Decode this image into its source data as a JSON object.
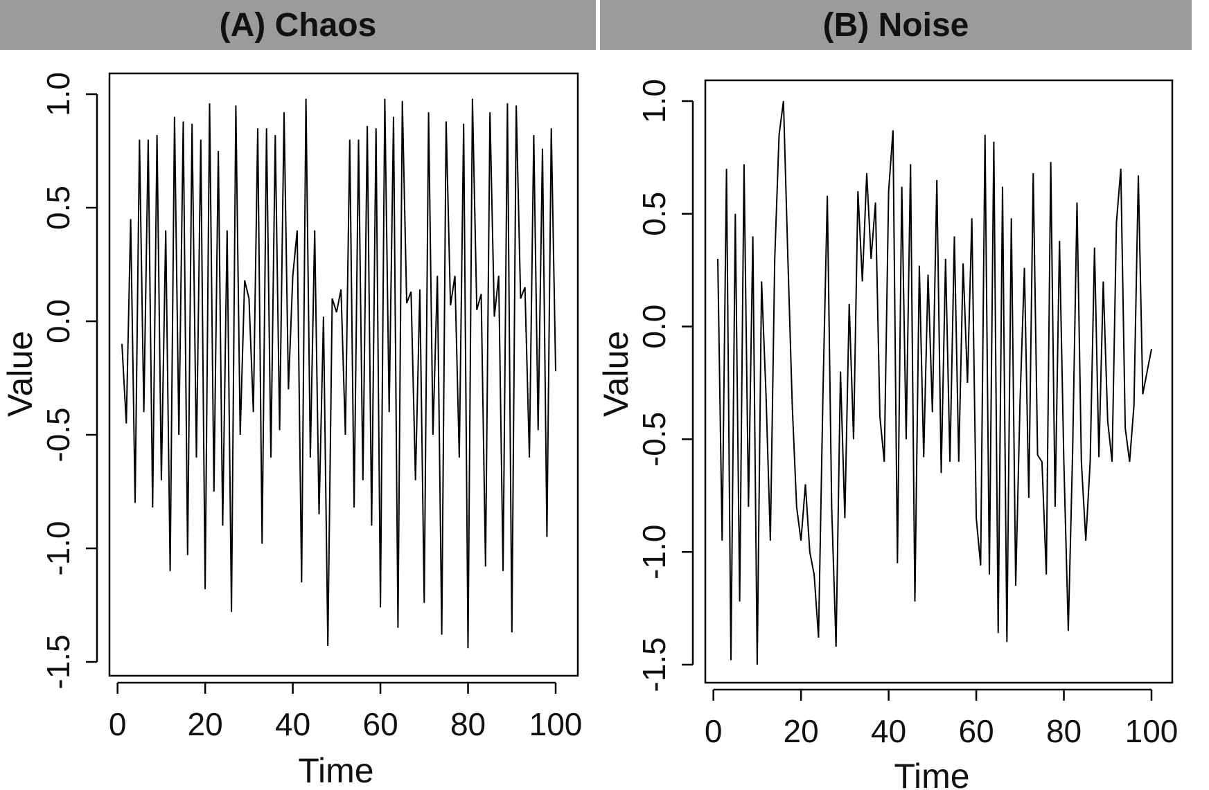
{
  "chart_data": [
    {
      "type": "line",
      "title": "(A) Chaos",
      "xlabel": "Time",
      "ylabel": "Value",
      "xlim": [
        1,
        100
      ],
      "ylim": [
        -1.5,
        1.0
      ],
      "x_ticks": [
        0,
        20,
        40,
        60,
        80,
        100
      ],
      "x_tick_labels": [
        "0",
        "20",
        "40",
        "60",
        "80",
        "100"
      ],
      "y_ticks": [
        -1.5,
        -1.0,
        -0.5,
        0.0,
        0.5,
        1.0
      ],
      "y_tick_labels": [
        "-1.5",
        "-1.0",
        "-0.5",
        "0.0",
        "0.5",
        "1.0"
      ],
      "grid": false,
      "series": [
        {
          "x": [
            1,
            2,
            3,
            4,
            5,
            6,
            7,
            8,
            9,
            10,
            11,
            12,
            13,
            14,
            15,
            16,
            17,
            18,
            19,
            20,
            21,
            22,
            23,
            24,
            25,
            26,
            27,
            28,
            29,
            30,
            31,
            32,
            33,
            34,
            35,
            36,
            37,
            38,
            39,
            40,
            41,
            42,
            43,
            44,
            45,
            46,
            47,
            48,
            49,
            50,
            51,
            52,
            53,
            54,
            55,
            56,
            57,
            58,
            59,
            60,
            61,
            62,
            63,
            64,
            65,
            66,
            67,
            68,
            69,
            70,
            71,
            72,
            73,
            74,
            75,
            76,
            77,
            78,
            79,
            80,
            81,
            82,
            83,
            84,
            85,
            86,
            87,
            88,
            89,
            90,
            91,
            92,
            93,
            94,
            95,
            96,
            97,
            98,
            99,
            100
          ],
          "y": [
            -0.1,
            -0.45,
            0.45,
            -0.8,
            0.8,
            -0.4,
            0.8,
            -0.82,
            0.82,
            -0.7,
            0.4,
            -1.1,
            0.9,
            -0.5,
            0.88,
            -1.03,
            0.87,
            -0.6,
            0.8,
            -1.18,
            0.96,
            -0.75,
            0.75,
            -0.9,
            0.4,
            -1.28,
            0.95,
            -0.5,
            0.18,
            0.1,
            -0.4,
            0.85,
            -0.98,
            0.85,
            -0.6,
            0.82,
            -0.48,
            0.92,
            -0.3,
            0.2,
            0.4,
            -1.15,
            0.98,
            -0.6,
            0.4,
            -0.85,
            0.02,
            -1.43,
            0.1,
            0.04,
            0.14,
            -0.5,
            0.8,
            -0.82,
            0.8,
            -0.7,
            0.86,
            -0.9,
            0.85,
            -1.26,
            0.98,
            -0.4,
            0.9,
            -1.35,
            0.97,
            0.08,
            0.13,
            -0.7,
            0.14,
            -1.24,
            0.92,
            -0.5,
            0.2,
            -1.38,
            0.88,
            0.07,
            0.2,
            -0.6,
            0.87,
            -1.44,
            0.98,
            0.05,
            0.12,
            -1.08,
            0.92,
            0.02,
            0.2,
            -1.1,
            0.96,
            -1.37,
            0.95,
            0.1,
            0.15,
            -0.6,
            0.82,
            -0.48,
            0.76,
            -0.95,
            0.85,
            -0.22
          ]
        }
      ]
    },
    {
      "type": "line",
      "title": "(B) Noise",
      "xlabel": "Time",
      "ylabel": "Value",
      "xlim": [
        1,
        100
      ],
      "ylim": [
        -1.5,
        1.0
      ],
      "x_ticks": [
        0,
        20,
        40,
        60,
        80,
        100
      ],
      "x_tick_labels": [
        "0",
        "20",
        "40",
        "60",
        "80",
        "100"
      ],
      "y_ticks": [
        -1.5,
        -1.0,
        -0.5,
        0.0,
        0.5,
        1.0
      ],
      "y_tick_labels": [
        "-1.5",
        "-1.0",
        "-0.5",
        "0.0",
        "0.5",
        "1.0"
      ],
      "grid": false,
      "series": [
        {
          "x": [
            1,
            2,
            3,
            4,
            5,
            6,
            7,
            8,
            9,
            10,
            11,
            12,
            13,
            14,
            15,
            16,
            17,
            18,
            19,
            20,
            21,
            22,
            23,
            24,
            25,
            26,
            27,
            28,
            29,
            30,
            31,
            32,
            33,
            34,
            35,
            36,
            37,
            38,
            39,
            40,
            41,
            42,
            43,
            44,
            45,
            46,
            47,
            48,
            49,
            50,
            51,
            52,
            53,
            54,
            55,
            56,
            57,
            58,
            59,
            60,
            61,
            62,
            63,
            64,
            65,
            66,
            67,
            68,
            69,
            70,
            71,
            72,
            73,
            74,
            75,
            76,
            77,
            78,
            79,
            80,
            81,
            82,
            83,
            84,
            85,
            86,
            87,
            88,
            89,
            90,
            91,
            92,
            93,
            94,
            95,
            96,
            97,
            98,
            99,
            100
          ],
          "y": [
            0.3,
            -0.95,
            0.7,
            -1.48,
            0.5,
            -1.22,
            0.72,
            -0.8,
            0.4,
            -1.5,
            0.2,
            -0.3,
            -0.95,
            0.3,
            0.85,
            1.0,
            0.3,
            -0.35,
            -0.8,
            -0.95,
            -0.7,
            -1.0,
            -1.1,
            -1.38,
            -0.3,
            0.58,
            -0.8,
            -1.42,
            -0.2,
            -0.85,
            0.1,
            -0.5,
            0.6,
            0.2,
            0.68,
            0.3,
            0.55,
            -0.4,
            -0.6,
            0.6,
            0.87,
            -1.05,
            0.62,
            -0.5,
            0.72,
            -1.22,
            0.27,
            -0.58,
            0.23,
            -0.38,
            0.65,
            -0.65,
            0.3,
            -0.6,
            0.4,
            -0.6,
            0.28,
            -0.25,
            0.48,
            -0.85,
            -1.06,
            0.85,
            -1.1,
            0.82,
            -1.36,
            0.62,
            -1.4,
            0.48,
            -1.15,
            -0.33,
            0.26,
            -0.76,
            0.68,
            -0.57,
            -0.6,
            -1.1,
            0.73,
            -0.8,
            0.38,
            -0.6,
            -1.35,
            -0.55,
            0.55,
            -0.6,
            -0.95,
            -0.6,
            0.35,
            -0.58,
            0.2,
            -0.42,
            -0.6,
            0.46,
            0.7,
            -0.45,
            -0.6,
            -0.35,
            0.67,
            -0.3,
            -0.2,
            -0.1
          ]
        }
      ]
    }
  ]
}
